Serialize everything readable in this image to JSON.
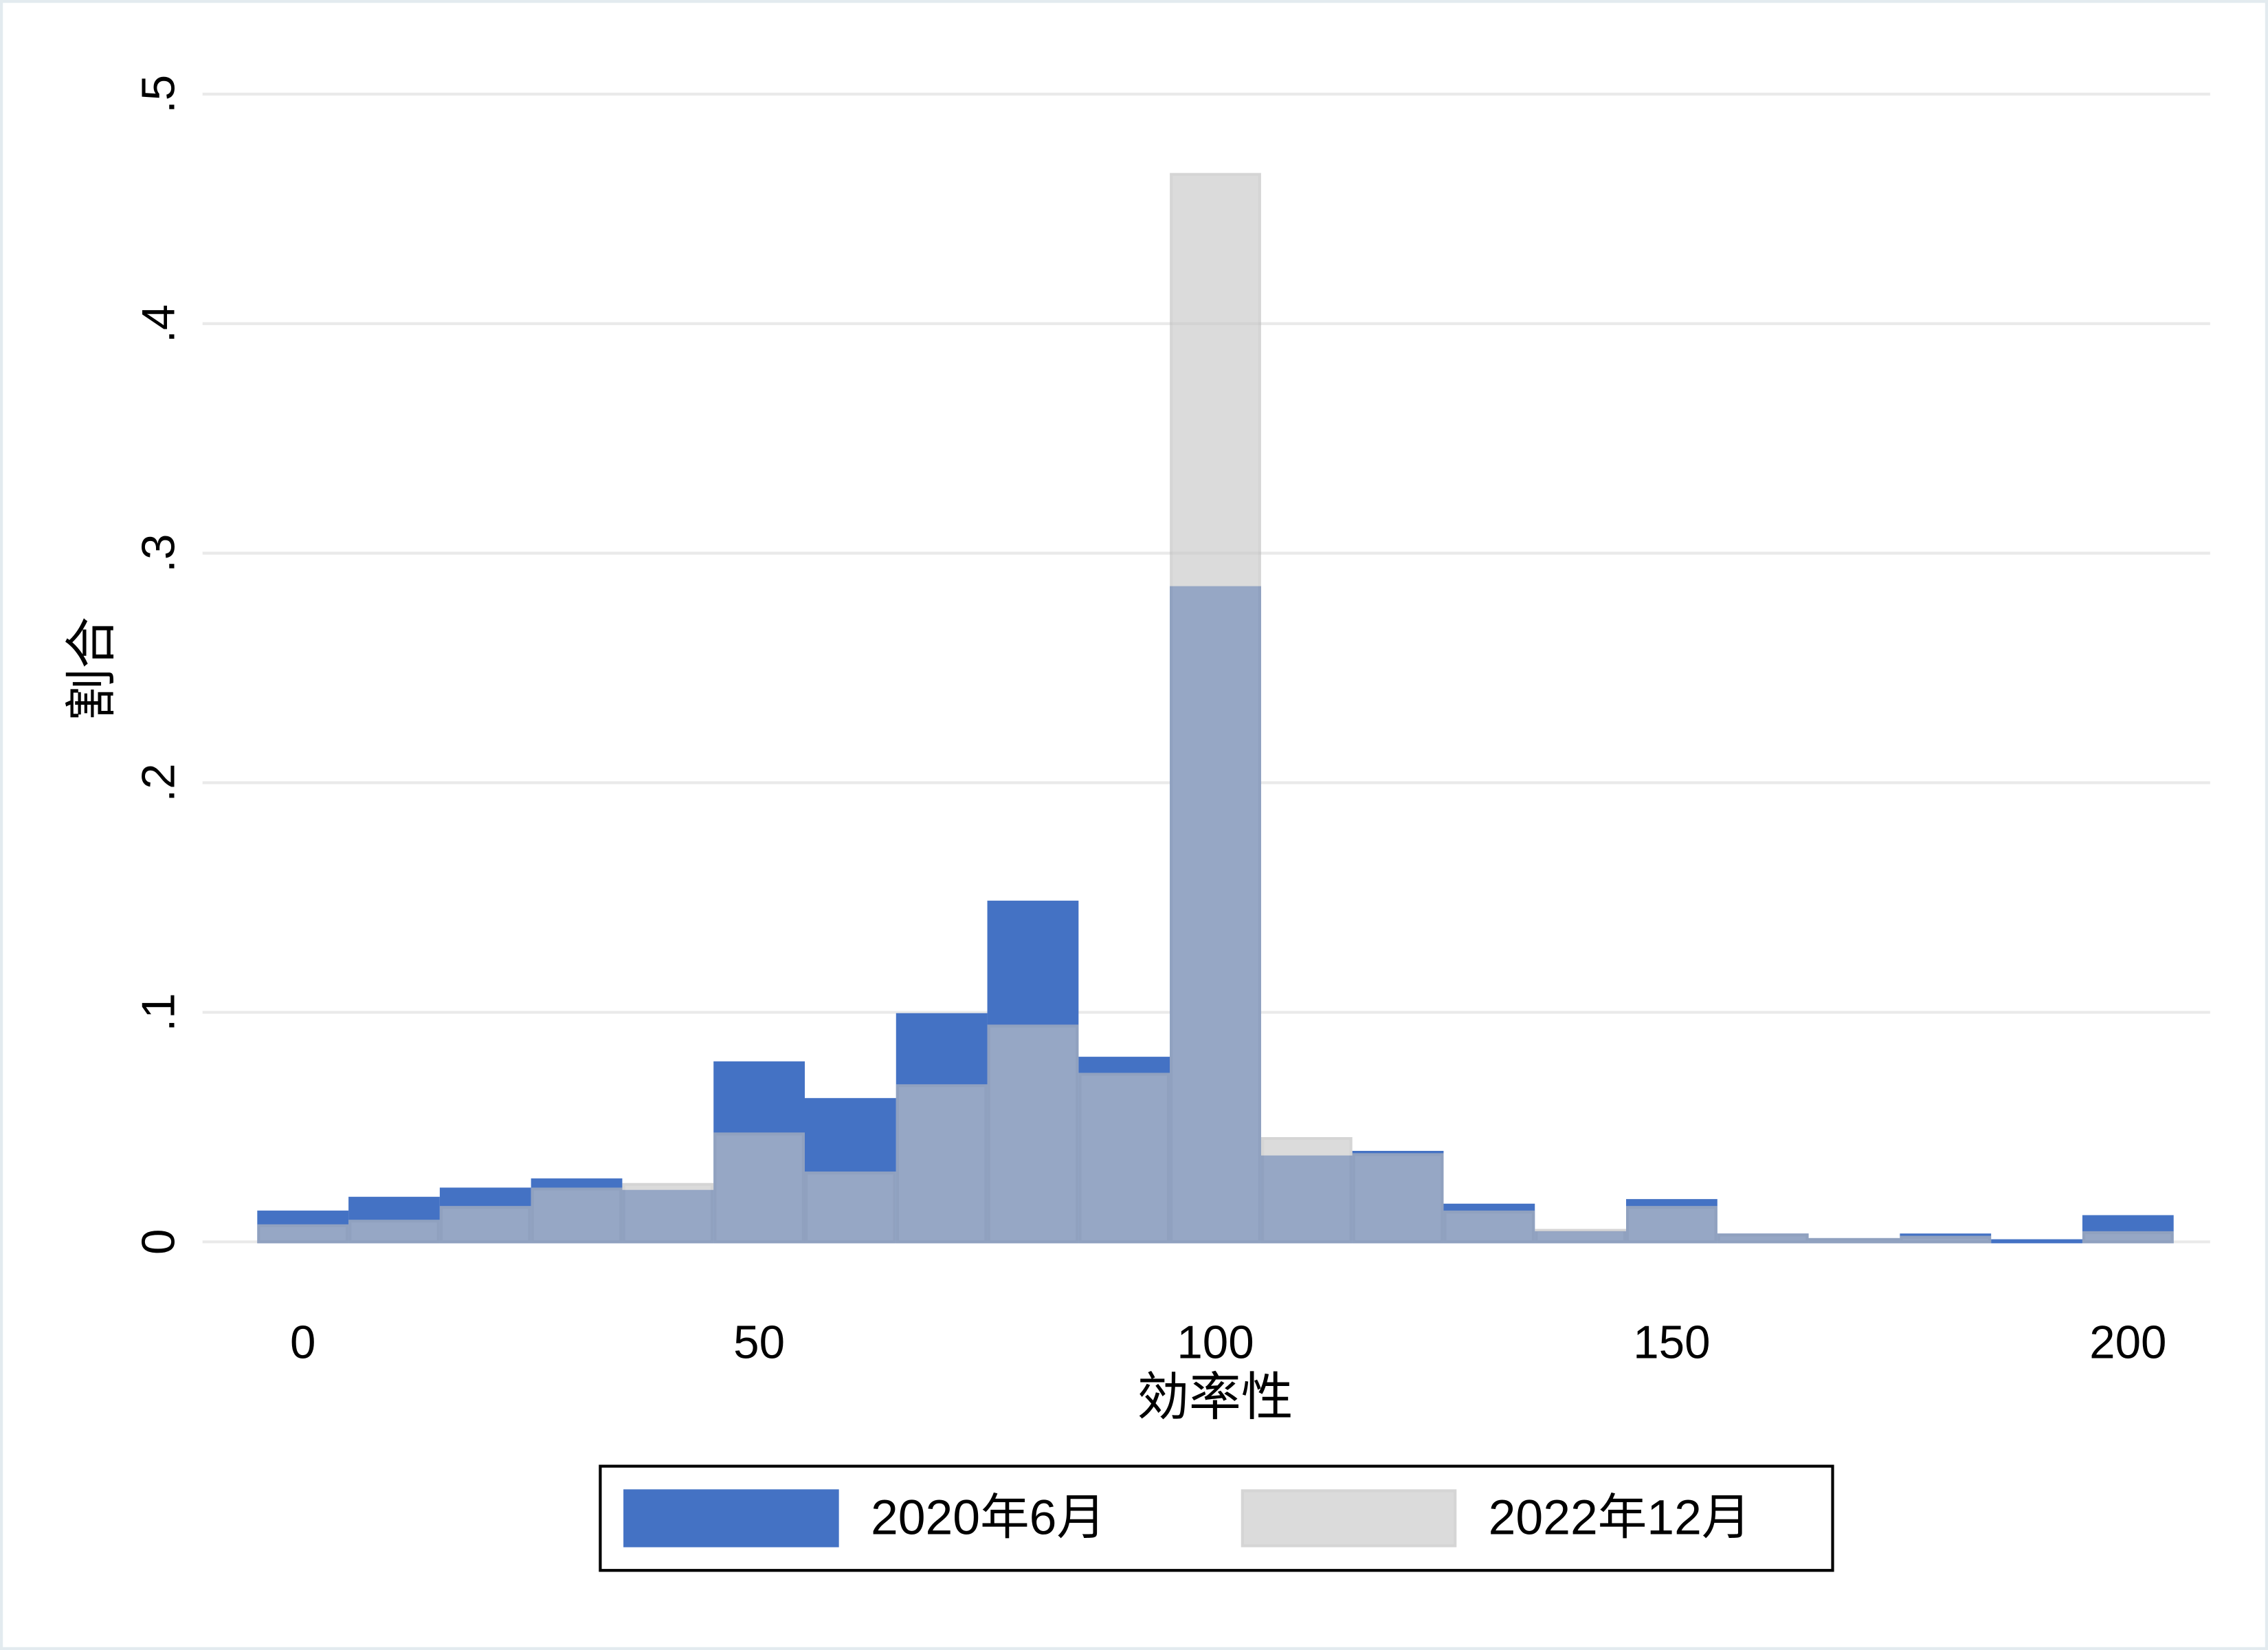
{
  "chart_data": {
    "type": "histogram",
    "x_label": "効率性",
    "y_label": "割合",
    "bins": [
      -5,
      5,
      15,
      25,
      35,
      45,
      55,
      65,
      75,
      85,
      95,
      105,
      115,
      125,
      135,
      145,
      155,
      165,
      175,
      185,
      195,
      205
    ],
    "series": [
      {
        "name": "2020年6月",
        "color": "#4472c4",
        "opacity": 1,
        "values": [
          0.013,
          0.019,
          0.023,
          0.027,
          0.022,
          0.078,
          0.062,
          0.099,
          0.148,
          0.08,
          0.285,
          0.037,
          0.039,
          0.016,
          0.004,
          0.018,
          0.003,
          0.001,
          0.003,
          0.0005,
          0.011
        ]
      },
      {
        "name": "2022年12月",
        "color": "#c7c7c7",
        "opacity": 0.63,
        "values": [
          0.007,
          0.009,
          0.015,
          0.023,
          0.025,
          0.047,
          0.03,
          0.068,
          0.094,
          0.073,
          0.465,
          0.045,
          0.038,
          0.013,
          0.005,
          0.015,
          0.003,
          0.001,
          0.002,
          0,
          0.004
        ]
      }
    ],
    "xlim": [
      -11,
      209
    ],
    "ylim": [
      0,
      0.5
    ],
    "xticks": [
      0,
      50,
      100,
      150,
      200
    ],
    "yticks": [
      0,
      {
        "value": 0.1,
        "label": ".1"
      },
      {
        "value": 0.2,
        "label": ".2"
      },
      {
        "value": 0.3,
        "label": ".3"
      },
      {
        "value": 0.4,
        "label": ".4"
      },
      {
        "value": 0.5,
        "label": ".5"
      }
    ],
    "grid": true,
    "legend": "bottom"
  }
}
